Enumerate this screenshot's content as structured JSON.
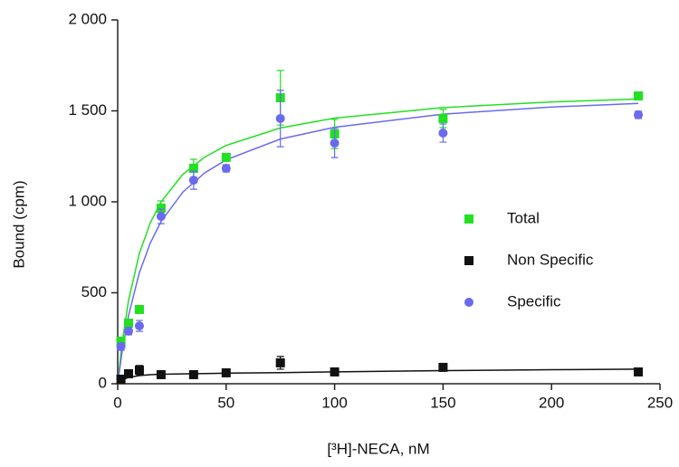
{
  "chart_data": {
    "type": "scatter",
    "x_label": "[³H]-NECA, nM",
    "y_label": "Bound (cpm)",
    "xlim": [
      0,
      250
    ],
    "xticks": [
      0,
      50,
      100,
      150,
      200,
      250
    ],
    "ylim": [
      0,
      2000
    ],
    "yticks": [
      0,
      500,
      {
        "value": 1000,
        "label": "1 000"
      },
      {
        "value": 1500,
        "label": "1 500"
      },
      {
        "value": 2000,
        "label": "2 000"
      }
    ],
    "legend": "right",
    "series": [
      {
        "name": "Total",
        "color": "#22e022",
        "marker": "square",
        "x": [
          1.5,
          5,
          10,
          20,
          35,
          50,
          75,
          100,
          150,
          240
        ],
        "values": [
          234,
          333,
          408,
          965,
          1184,
          1244,
          1572,
          1373,
          1458,
          1582
        ],
        "errors": [
          20,
          20,
          20,
          40,
          50,
          20,
          150,
          80,
          50,
          20
        ],
        "fit_x": [
          0,
          2,
          5,
          10,
          15,
          20,
          30,
          40,
          50,
          75,
          100,
          150,
          200,
          240
        ],
        "fit_values": [
          0,
          220,
          458,
          717,
          884,
          1000,
          1151,
          1245,
          1310,
          1406,
          1460,
          1518,
          1549,
          1565
        ]
      },
      {
        "name": "Non Specific",
        "color": "#111111",
        "marker": "square",
        "x": [
          1.5,
          5,
          10,
          20,
          35,
          50,
          75,
          100,
          150,
          240
        ],
        "values": [
          25,
          55,
          75,
          50,
          50,
          60,
          115,
          65,
          90,
          65
        ],
        "errors": [
          10,
          10,
          25,
          10,
          10,
          10,
          35,
          10,
          10,
          10
        ],
        "fit_x": [
          0,
          2,
          5,
          10,
          15,
          20,
          30,
          40,
          50,
          75,
          100,
          150,
          200,
          240
        ],
        "fit_values": [
          0,
          20,
          35,
          45,
          50,
          52,
          54,
          56,
          58,
          61,
          65,
          72,
          77,
          80
        ]
      },
      {
        "name": "Specific",
        "color": "#6a6aee",
        "marker": "circle",
        "x": [
          1.5,
          5,
          10,
          20,
          35,
          50,
          75,
          100,
          150,
          240
        ],
        "values": [
          204,
          289,
          318,
          920,
          1119,
          1184,
          1458,
          1323,
          1378,
          1478
        ],
        "errors": [
          20,
          20,
          30,
          40,
          50,
          20,
          155,
          80,
          50,
          20
        ],
        "fit_x": [
          0,
          2,
          5,
          10,
          15,
          20,
          30,
          40,
          50,
          75,
          100,
          150,
          200,
          240
        ],
        "fit_values": [
          0,
          174,
          375,
          611,
          773,
          892,
          1053,
          1158,
          1231,
          1345,
          1410,
          1482,
          1521,
          1541
        ]
      }
    ]
  }
}
